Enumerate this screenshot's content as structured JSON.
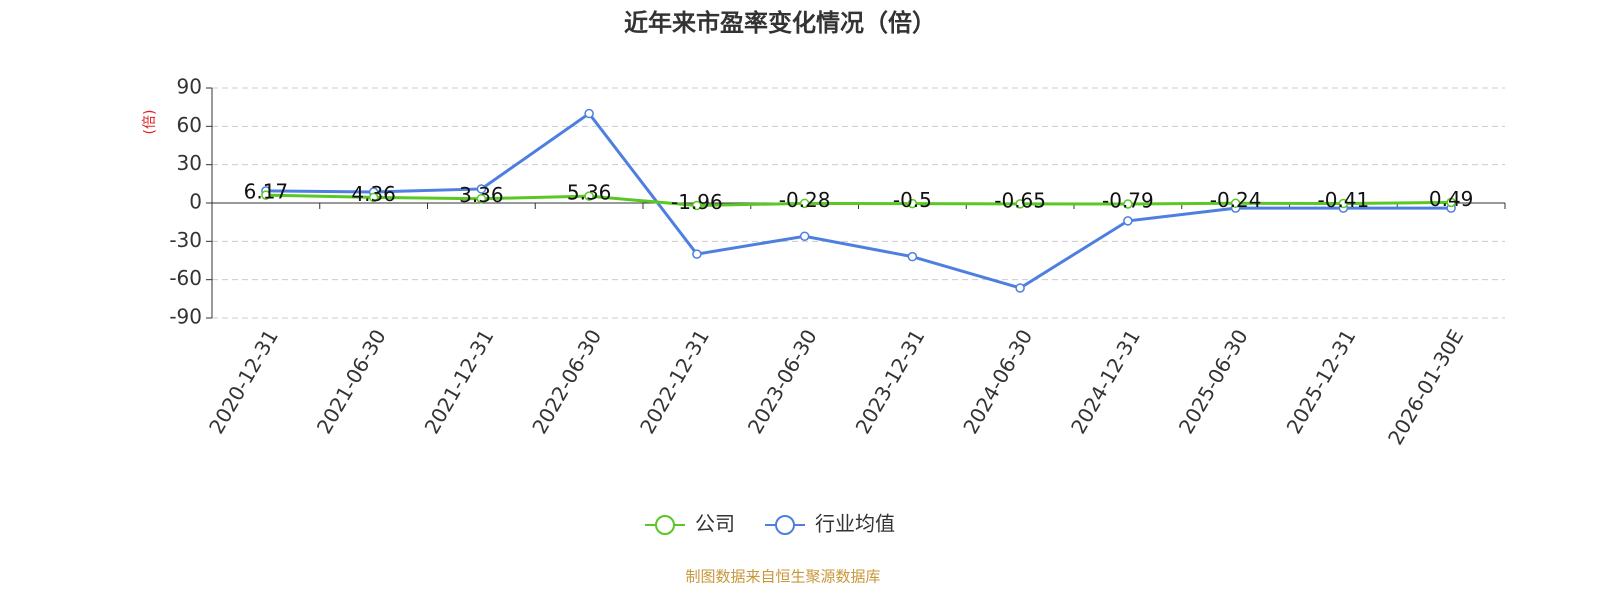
{
  "chart_data": {
    "type": "line",
    "title": "近年来市盈率变化情况（倍）",
    "y_label": "(倍)",
    "categories": [
      "2020-12-31",
      "2021-06-30",
      "2021-12-31",
      "2022-06-30",
      "2022-12-31",
      "2023-06-30",
      "2023-12-31",
      "2024-06-30",
      "2024-12-31",
      "2025-06-30",
      "2025-12-31",
      "2026-01-30E"
    ],
    "series": [
      {
        "name": "公司",
        "color": "#5ac724",
        "values": [
          6.17,
          4.36,
          3.36,
          5.36,
          -1.96,
          -0.28,
          -0.5,
          -0.65,
          -0.79,
          -0.24,
          -0.41,
          0.49
        ],
        "show_labels": true
      },
      {
        "name": "行业均值",
        "color": "#4e7fe0",
        "values": [
          9.5,
          8.6,
          11,
          70,
          -40,
          -26,
          -42,
          -66.5,
          -14,
          -4,
          -4,
          -4
        ],
        "show_labels": false
      }
    ],
    "ylim": [
      -90,
      90
    ],
    "yticks": [
      -90,
      -60,
      -30,
      0,
      30,
      60,
      90
    ],
    "grid": true,
    "source": "制图数据来自恒生聚源数据库"
  }
}
